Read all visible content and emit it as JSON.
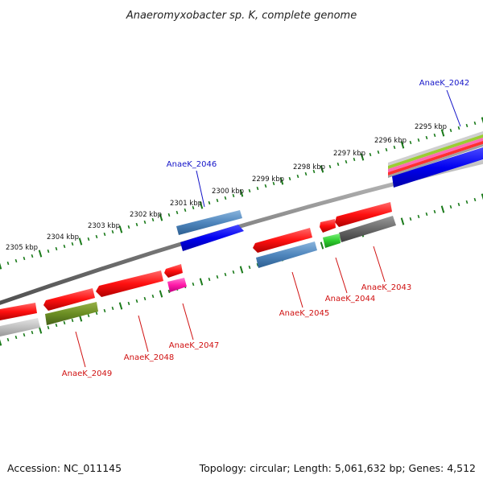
{
  "title": "Anaeromyxobacter sp. K, complete genome",
  "footer": {
    "accession": "Accession: NC_011145",
    "summary": "Topology: circular; Length: 5,061,632 bp; Genes: 4,512"
  },
  "ruler": {
    "color": "#1a7a1a",
    "ticks": [
      "2295 kbp",
      "2296 kbp",
      "2297 kbp",
      "2298 kbp",
      "2299 kbp",
      "2300 kbp",
      "2301 kbp",
      "2302 kbp",
      "2303 kbp",
      "2304 kbp",
      "2305 kbp"
    ]
  },
  "genes": {
    "blue_label_color": "#1414c8",
    "red_label_color": "#d01010",
    "top": [
      {
        "name": "AnaeK_2042"
      },
      {
        "name": "AnaeK_2046"
      }
    ],
    "bottom": [
      {
        "name": "AnaeK_2043"
      },
      {
        "name": "AnaeK_2044"
      },
      {
        "name": "AnaeK_2045"
      },
      {
        "name": "AnaeK_2047"
      },
      {
        "name": "AnaeK_2048"
      },
      {
        "name": "AnaeK_2049"
      }
    ]
  }
}
